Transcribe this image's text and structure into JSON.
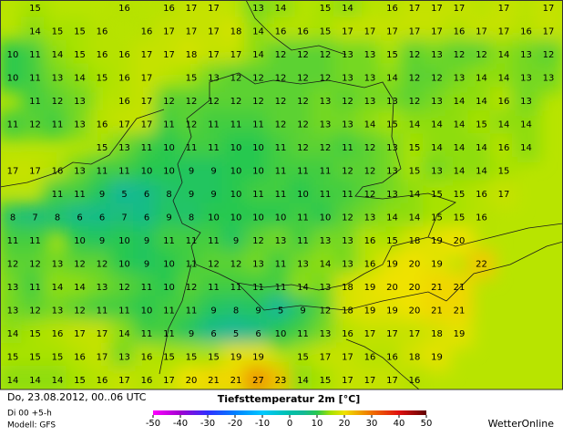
{
  "map": {
    "grid": [
      [
        null,
        15,
        null,
        null,
        null,
        16,
        null,
        16,
        17,
        17,
        null,
        13,
        14,
        null,
        15,
        14,
        null,
        16,
        17,
        17,
        17,
        null,
        17,
        null,
        17
      ],
      [
        null,
        14,
        15,
        15,
        16,
        null,
        16,
        17,
        17,
        17,
        18,
        14,
        16,
        16,
        15,
        17,
        17,
        17,
        17,
        17,
        16,
        17,
        17,
        16,
        17
      ],
      [
        10,
        11,
        14,
        15,
        16,
        16,
        17,
        17,
        18,
        17,
        17,
        14,
        12,
        12,
        12,
        13,
        13,
        15,
        12,
        13,
        12,
        12,
        14,
        13,
        12
      ],
      [
        10,
        11,
        13,
        14,
        15,
        16,
        17,
        null,
        15,
        13,
        12,
        12,
        12,
        12,
        12,
        13,
        13,
        14,
        12,
        12,
        13,
        14,
        14,
        13,
        13
      ],
      [
        null,
        11,
        12,
        13,
        null,
        16,
        17,
        12,
        12,
        12,
        12,
        12,
        12,
        12,
        13,
        12,
        13,
        13,
        12,
        13,
        14,
        14,
        16,
        13,
        null
      ],
      [
        11,
        12,
        11,
        13,
        16,
        17,
        17,
        11,
        12,
        11,
        11,
        11,
        12,
        12,
        13,
        13,
        14,
        15,
        14,
        14,
        14,
        15,
        14,
        14,
        null
      ],
      [
        null,
        null,
        null,
        null,
        15,
        13,
        11,
        10,
        11,
        11,
        10,
        10,
        11,
        12,
        12,
        11,
        12,
        13,
        15,
        14,
        14,
        14,
        16,
        14,
        null
      ],
      [
        17,
        17,
        16,
        13,
        11,
        11,
        10,
        10,
        9,
        9,
        10,
        10,
        11,
        11,
        11,
        12,
        12,
        13,
        15,
        13,
        14,
        14,
        15,
        null,
        null
      ],
      [
        null,
        null,
        11,
        11,
        9,
        5,
        6,
        8,
        9,
        9,
        10,
        11,
        11,
        10,
        11,
        11,
        12,
        13,
        14,
        15,
        15,
        16,
        17,
        null,
        null
      ],
      [
        8,
        7,
        8,
        6,
        6,
        7,
        6,
        9,
        8,
        10,
        10,
        10,
        10,
        11,
        10,
        12,
        13,
        14,
        14,
        15,
        15,
        16,
        null,
        null,
        null
      ],
      [
        11,
        11,
        null,
        10,
        9,
        10,
        9,
        11,
        11,
        11,
        9,
        12,
        13,
        11,
        13,
        13,
        16,
        15,
        18,
        19,
        20,
        null,
        null,
        null,
        null
      ],
      [
        12,
        12,
        13,
        12,
        12,
        10,
        9,
        10,
        11,
        12,
        12,
        13,
        11,
        13,
        14,
        13,
        16,
        19,
        20,
        19,
        null,
        22,
        null,
        null,
        null
      ],
      [
        13,
        11,
        14,
        14,
        13,
        12,
        11,
        10,
        12,
        11,
        11,
        11,
        11,
        14,
        13,
        18,
        19,
        20,
        20,
        21,
        21,
        null,
        null,
        null,
        null
      ],
      [
        13,
        12,
        13,
        12,
        11,
        11,
        10,
        11,
        11,
        9,
        8,
        9,
        5,
        9,
        12,
        18,
        19,
        19,
        20,
        21,
        21,
        null,
        null,
        null,
        null
      ],
      [
        14,
        15,
        16,
        17,
        17,
        14,
        11,
        11,
        9,
        6,
        5,
        6,
        10,
        11,
        13,
        16,
        17,
        17,
        17,
        18,
        19,
        null,
        null,
        null,
        null
      ],
      [
        15,
        15,
        15,
        16,
        17,
        13,
        16,
        15,
        15,
        15,
        19,
        19,
        null,
        15,
        17,
        17,
        16,
        16,
        18,
        19,
        null,
        null,
        null,
        null,
        null
      ],
      [
        14,
        14,
        14,
        15,
        16,
        17,
        16,
        17,
        20,
        21,
        21,
        27,
        23,
        14,
        15,
        17,
        17,
        17,
        16,
        null,
        null,
        null,
        null,
        null,
        null
      ]
    ],
    "footer": {
      "date": "Do, 23.08.2012, 00..06 UTC",
      "run": "Di 00 +5-h",
      "model": "Modell: GFS",
      "title": "Tiefsttemperatur  2m [°C]",
      "scale_ticks": [
        -50,
        -40,
        -30,
        -20,
        -10,
        0,
        10,
        20,
        30,
        40,
        50
      ],
      "brand": "WetterOnline"
    }
  }
}
